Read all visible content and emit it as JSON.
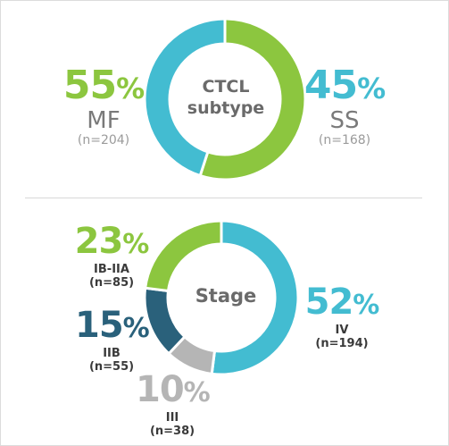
{
  "chart_data": [
    {
      "type": "pie",
      "title": "CTCL subtype",
      "categories": [
        "MF",
        "SS"
      ],
      "values": [
        55,
        45
      ],
      "counts": [
        "(n=204)",
        "(n=168)"
      ],
      "colors": [
        "#8cc63f",
        "#43bcd1"
      ]
    },
    {
      "type": "pie",
      "title": "Stage",
      "categories": [
        "IV",
        "III",
        "IIB",
        "IB-IIA"
      ],
      "values": [
        52,
        10,
        15,
        23
      ],
      "counts": [
        "(n=194)",
        "(n=38)",
        "(n=55)",
        "(n=85)"
      ],
      "colors": [
        "#43bcd1",
        "#b5b5b5",
        "#2a617b",
        "#8cc63f"
      ]
    }
  ],
  "labels": {
    "pct_sign": "%",
    "subtype_center_line1": "CTCL",
    "subtype_center_line2": "subtype",
    "stage_center": "Stage",
    "mf": {
      "pct": "55",
      "name": "MF",
      "n": "(n=204)"
    },
    "ss": {
      "pct": "45",
      "name": "SS",
      "n": "(n=168)"
    },
    "ibiia": {
      "pct": "23",
      "name": "IB-IIA",
      "n": "(n=85)"
    },
    "iib": {
      "pct": "15",
      "name": "IIB",
      "n": "(n=55)"
    },
    "iii": {
      "pct": "10",
      "name": "III",
      "n": "(n=38)"
    },
    "iv": {
      "pct": "52",
      "name": "IV",
      "n": "(n=194)"
    }
  }
}
